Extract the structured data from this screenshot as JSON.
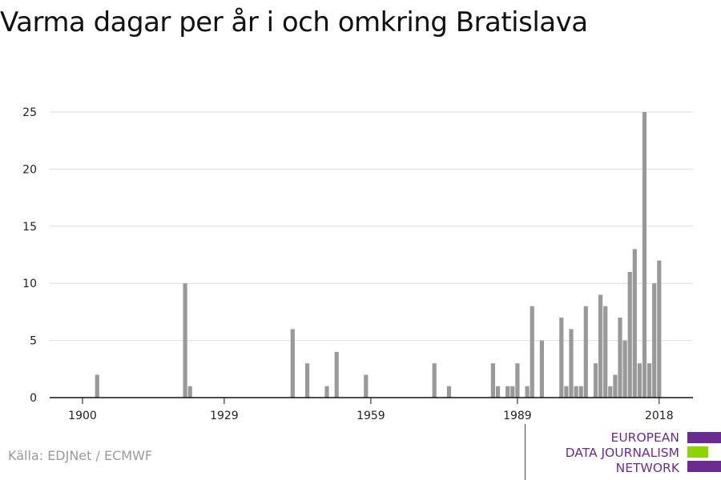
{
  "title": "Varma dagar per år i och omkring Bratislava",
  "source": "Källa: EDJNet / ECMWF",
  "logo": {
    "line1": "EUROPEAN",
    "line2": "DATA JOURNALISM",
    "line3": "NETWORK",
    "colors": {
      "purple": "#6b2c91",
      "green": "#8fd400"
    }
  },
  "chart_data": {
    "type": "bar",
    "title": "Varma dagar per år i och omkring Bratislava",
    "xlabel": "",
    "ylabel": "",
    "x_ticks": [
      1900,
      1929,
      1959,
      1989,
      2018
    ],
    "y_ticks": [
      0,
      5,
      10,
      15,
      20,
      25
    ],
    "xlim": [
      1899,
      2018
    ],
    "ylim": [
      0,
      25
    ],
    "grid": true,
    "bar_color": "#999999",
    "data": [
      {
        "year": 1903,
        "value": 2
      },
      {
        "year": 1921,
        "value": 10
      },
      {
        "year": 1922,
        "value": 1
      },
      {
        "year": 1943,
        "value": 6
      },
      {
        "year": 1946,
        "value": 3
      },
      {
        "year": 1950,
        "value": 1
      },
      {
        "year": 1952,
        "value": 4
      },
      {
        "year": 1958,
        "value": 2
      },
      {
        "year": 1972,
        "value": 3
      },
      {
        "year": 1975,
        "value": 1
      },
      {
        "year": 1984,
        "value": 3
      },
      {
        "year": 1985,
        "value": 1
      },
      {
        "year": 1987,
        "value": 1
      },
      {
        "year": 1988,
        "value": 1
      },
      {
        "year": 1989,
        "value": 3
      },
      {
        "year": 1991,
        "value": 1
      },
      {
        "year": 1992,
        "value": 8
      },
      {
        "year": 1994,
        "value": 5
      },
      {
        "year": 1998,
        "value": 7
      },
      {
        "year": 1999,
        "value": 1
      },
      {
        "year": 2000,
        "value": 6
      },
      {
        "year": 2001,
        "value": 1
      },
      {
        "year": 2002,
        "value": 1
      },
      {
        "year": 2003,
        "value": 8
      },
      {
        "year": 2005,
        "value": 3
      },
      {
        "year": 2006,
        "value": 9
      },
      {
        "year": 2007,
        "value": 8
      },
      {
        "year": 2008,
        "value": 1
      },
      {
        "year": 2009,
        "value": 2
      },
      {
        "year": 2010,
        "value": 7
      },
      {
        "year": 2011,
        "value": 5
      },
      {
        "year": 2012,
        "value": 11
      },
      {
        "year": 2013,
        "value": 13
      },
      {
        "year": 2014,
        "value": 3
      },
      {
        "year": 2015,
        "value": 25
      },
      {
        "year": 2016,
        "value": 3
      },
      {
        "year": 2017,
        "value": 10
      },
      {
        "year": 2018,
        "value": 12
      }
    ]
  }
}
